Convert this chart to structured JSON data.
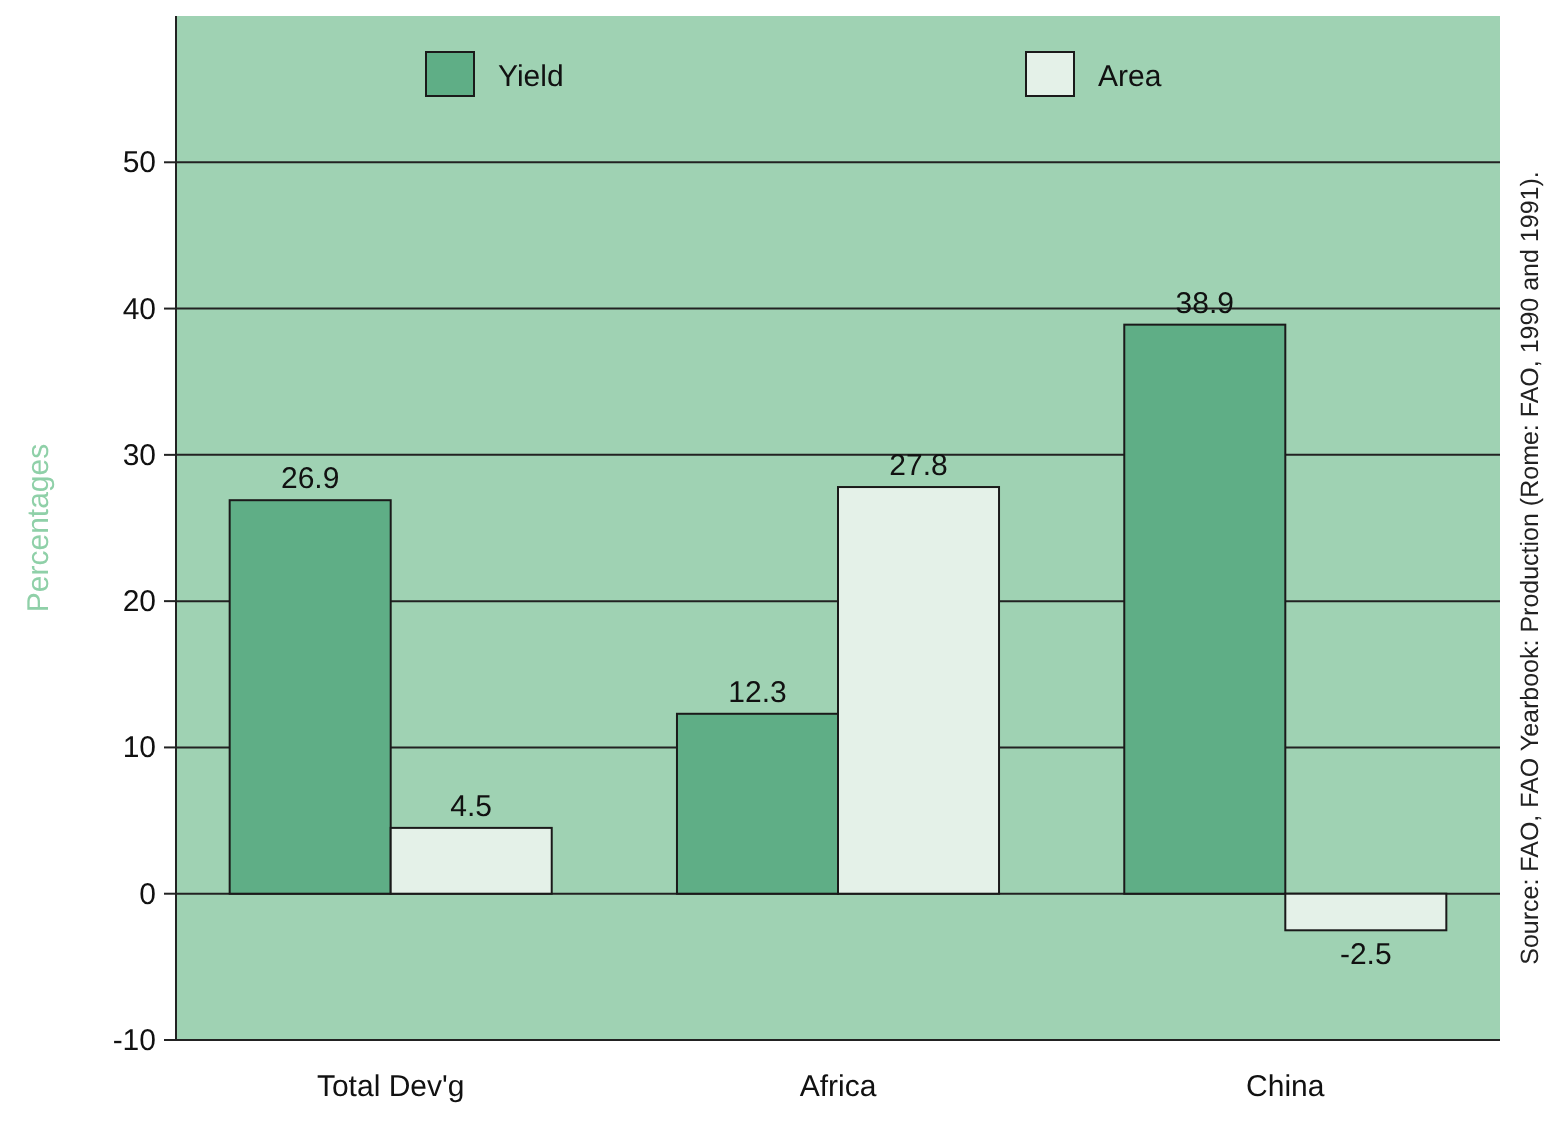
{
  "chart_data": {
    "type": "bar",
    "categories": [
      "Total Dev'g",
      "Africa",
      "China"
    ],
    "series": [
      {
        "name": "Yield",
        "color": "#5fae86",
        "values": [
          26.9,
          12.3,
          38.9
        ]
      },
      {
        "name": "Area",
        "color": "#e4f1e8",
        "values": [
          4.5,
          27.8,
          -2.5
        ]
      }
    ],
    "ylabel": "Percentages",
    "ylim": [
      -10,
      60
    ],
    "yticks": [
      -10,
      0,
      10,
      20,
      30,
      40,
      50
    ],
    "grid": "y",
    "legend": "top",
    "data_labels": true,
    "annotations": [
      "Source: FAO, FAO Yearbook: Production (Rome: FAO, 1990 and 1991)."
    ]
  }
}
